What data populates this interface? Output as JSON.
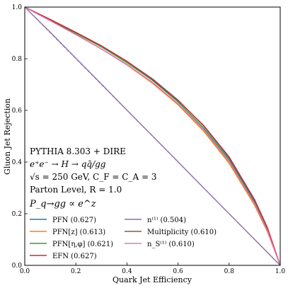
{
  "chart_data": {
    "type": "line",
    "xlabel": "Quark Jet Efficiency",
    "ylabel": "Gluon Jet Rejection",
    "xlim": [
      0.0,
      1.0
    ],
    "ylim": [
      0.0,
      1.0
    ],
    "xticks": [
      "0.0",
      "0.2",
      "0.4",
      "0.6",
      "0.8",
      "1.0"
    ],
    "yticks": [
      "0.0",
      "0.2",
      "0.4",
      "0.6",
      "0.8",
      "1.0"
    ],
    "grid": false,
    "legend_position": "lower-left",
    "annotation": {
      "line1": "PYTHIA 8.303 + DIRE",
      "line2": "e⁺e⁻ → H → qq̄/gg",
      "line3": "√s = 250 GeV, C_F = C_A = 3",
      "line4": "Parton Level, R = 1.0",
      "line5": "P_q→gg ∝ e^z"
    },
    "x": [
      0.0,
      0.05,
      0.1,
      0.2,
      0.3,
      0.4,
      0.5,
      0.6,
      0.7,
      0.8,
      0.9,
      0.95,
      1.0
    ],
    "series": [
      {
        "name": "PFN (0.627)",
        "color": "#1f77b4",
        "dashed": false,
        "values": [
          1.0,
          0.976,
          0.952,
          0.902,
          0.85,
          0.79,
          0.722,
          0.64,
          0.54,
          0.415,
          0.248,
          0.14,
          0.0
        ]
      },
      {
        "name": "PFN[z] (0.613)",
        "color": "#ff7f0e",
        "dashed": false,
        "values": [
          1.0,
          0.974,
          0.948,
          0.894,
          0.838,
          0.776,
          0.705,
          0.622,
          0.52,
          0.395,
          0.232,
          0.13,
          0.0
        ]
      },
      {
        "name": "PFN[η,φ] (0.621)",
        "color": "#2ca02c",
        "dashed": false,
        "values": [
          1.0,
          0.975,
          0.951,
          0.899,
          0.846,
          0.785,
          0.716,
          0.633,
          0.532,
          0.408,
          0.242,
          0.136,
          0.0
        ]
      },
      {
        "name": "EFN (0.627)",
        "color": "#d62728",
        "dashed": false,
        "values": [
          1.0,
          0.976,
          0.952,
          0.902,
          0.85,
          0.79,
          0.72,
          0.638,
          0.542,
          0.42,
          0.254,
          0.146,
          0.0
        ]
      },
      {
        "name": "n⁽¹⁾ (0.504)",
        "color": "#9467bd",
        "dashed": false,
        "values": [
          1.0,
          0.951,
          0.902,
          0.802,
          0.702,
          0.601,
          0.501,
          0.401,
          0.3,
          0.2,
          0.1,
          0.05,
          0.0
        ]
      },
      {
        "name": "Multiplicity (0.610)",
        "color": "#8c564b",
        "dashed": false,
        "values": [
          1.0,
          0.974,
          0.948,
          0.894,
          0.838,
          0.778,
          0.708,
          0.626,
          0.526,
          0.402,
          0.238,
          0.134,
          0.0
        ]
      },
      {
        "name": "n_S⁽¹⁾ (0.610)",
        "color": "#e377c2",
        "dashed": false,
        "values": [
          1.0,
          0.973,
          0.947,
          0.893,
          0.838,
          0.777,
          0.708,
          0.626,
          0.526,
          0.403,
          0.238,
          0.134,
          0.0
        ]
      },
      {
        "name": "",
        "color": "#7f7f7f",
        "dashed": true,
        "values": [
          1.0,
          0.95,
          0.9,
          0.8,
          0.7,
          0.6,
          0.5,
          0.4,
          0.3,
          0.2,
          0.1,
          0.05,
          0.0
        ]
      }
    ]
  }
}
